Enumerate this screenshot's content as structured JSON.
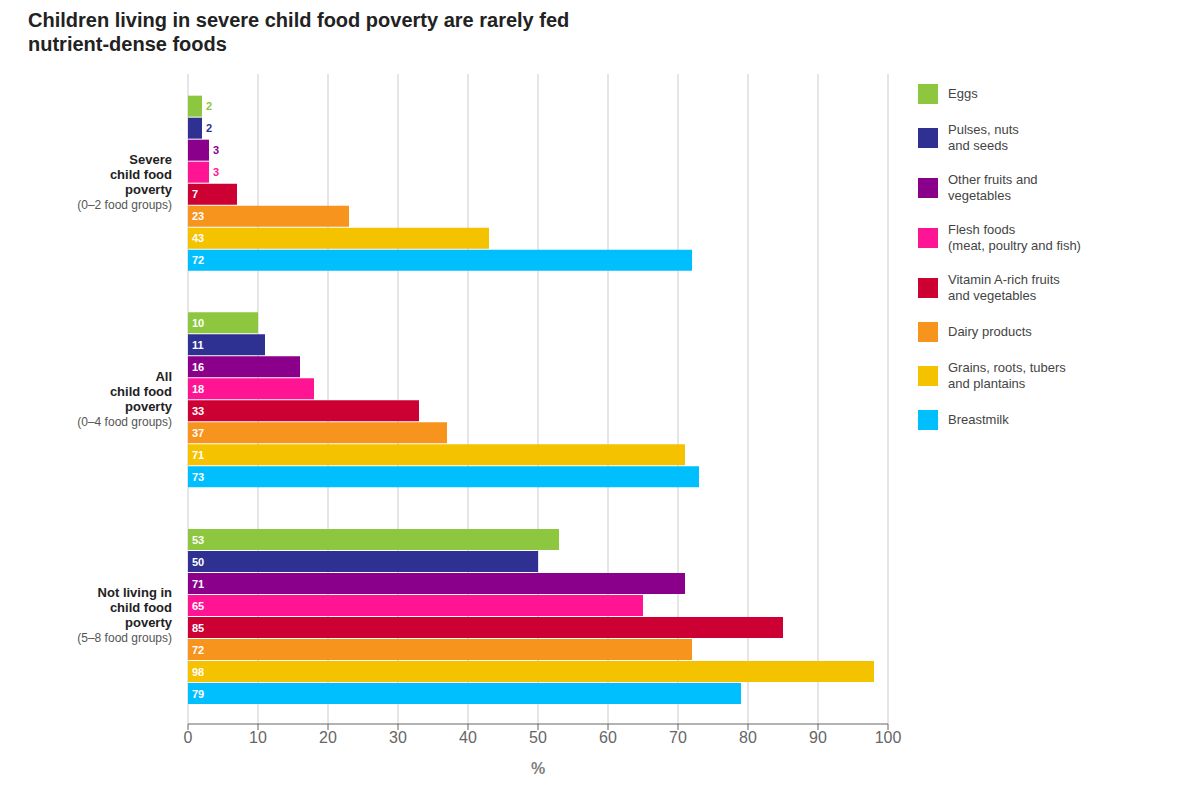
{
  "chart_data": {
    "type": "bar",
    "orientation": "horizontal",
    "title": "Children living in severe child food poverty are rarely fed\nnutrient-dense foods",
    "xlabel": "%",
    "categories": [
      "Severe\nchild food\npoverty\n(0–2 food groups)",
      "All\nchild food\npoverty\n(0–4 food groups)",
      "Not living in\nchild food\npoverty\n(5–8 food groups)"
    ],
    "series": [
      {
        "name": "Eggs",
        "color": "#8DC63F",
        "values": [
          2,
          10,
          53
        ]
      },
      {
        "name": "Pulses, nuts\nand seeds",
        "color": "#2E3192",
        "values": [
          2,
          11,
          50
        ]
      },
      {
        "name": "Other fruits and\nvegetables",
        "color": "#8B008B",
        "values": [
          3,
          16,
          71
        ]
      },
      {
        "name": "Flesh foods\n(meat, poultry and fish)",
        "color": "#FF1493",
        "values": [
          3,
          18,
          65
        ]
      },
      {
        "name": "Vitamin A-rich fruits\nand vegetables",
        "color": "#CC0033",
        "values": [
          7,
          33,
          85
        ]
      },
      {
        "name": "Dairy products",
        "color": "#F7941D",
        "values": [
          23,
          37,
          72
        ]
      },
      {
        "name": "Grains, roots, tubers\nand plantains",
        "color": "#F5C200",
        "values": [
          43,
          71,
          98
        ]
      },
      {
        "name": "Breastmilk",
        "color": "#00BFFF",
        "values": [
          72,
          73,
          79
        ]
      }
    ],
    "xlim": [
      0,
      100
    ],
    "xticks": [
      0,
      10,
      20,
      30,
      40,
      50,
      60,
      70,
      80,
      90,
      100
    ],
    "grid": true,
    "legend": "right",
    "data_labels": true
  }
}
